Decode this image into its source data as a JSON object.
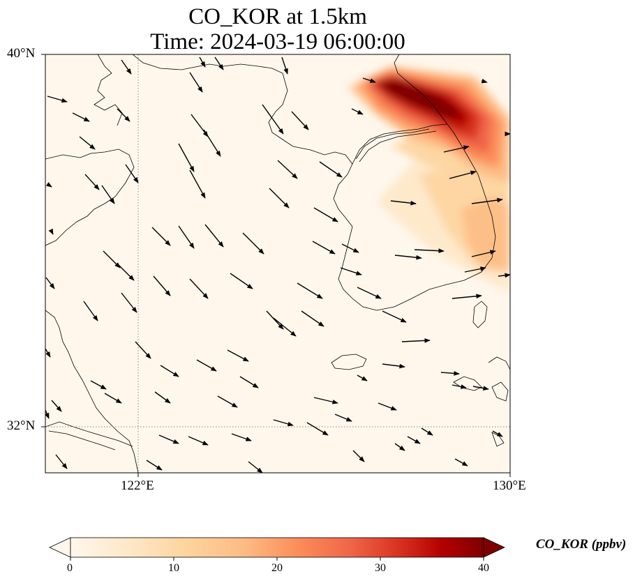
{
  "title": "CO_KOR at 1.5km",
  "subtitle": "Time: 2024-03-19 06:00:00",
  "map": {
    "variable": "CO_KOR",
    "units": "ppbv",
    "height": "1.5km",
    "valid_time": "2024-03-19 06:00:00",
    "lon_range": [
      120,
      130
    ],
    "lat_range": [
      31,
      40
    ],
    "lat_ticks": [
      "40°N",
      "32°N"
    ],
    "lon_ticks": [
      "122°E",
      "130°E"
    ],
    "gridlines": "dotted at 122°E and 32°N",
    "colormap": "OrRd",
    "plume_description": "CO maxima over North Korea / Gyeonggi Bay and along the east coast of the Korean Peninsula"
  },
  "colorbar": {
    "label": "CO_KOR (ppbv)",
    "min": 0,
    "max": 40,
    "extend": "both",
    "ticks": [
      "0",
      "10",
      "20",
      "30",
      "40"
    ],
    "colors": [
      "#fff7ec",
      "#fee8c8",
      "#fdd49e",
      "#fdbb84",
      "#fc8d59",
      "#ef6548",
      "#d7301f",
      "#b30000",
      "#7f0000"
    ]
  },
  "wind": {
    "description": "wind vectors at 1.5km, predominantly northwesterly over the Yellow Sea, westerly over Korea"
  }
}
